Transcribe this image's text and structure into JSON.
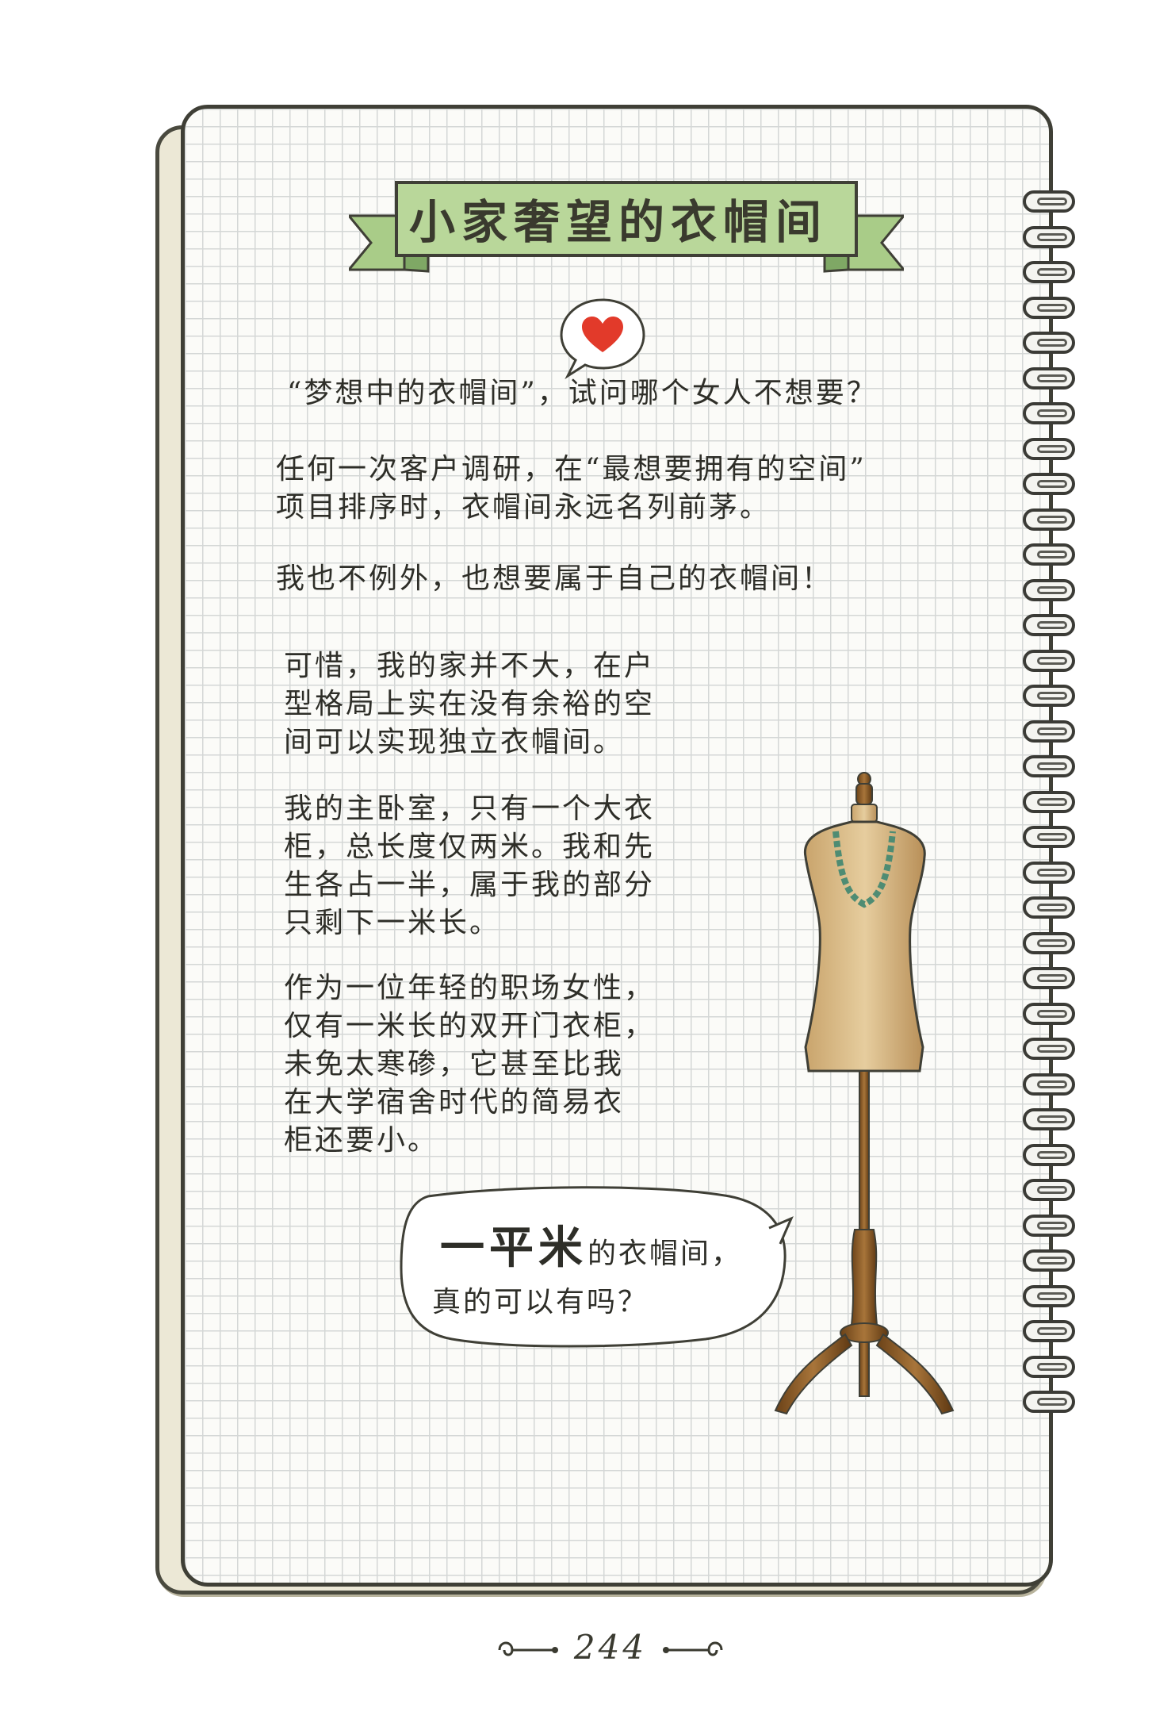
{
  "banner": {
    "title": "小家奢望的衣帽间",
    "color": "#b9d79a"
  },
  "heart_color": "#e23a2a",
  "paragraphs": {
    "p1": [
      "“梦想中的衣帽间”，试问哪个女人不想要？"
    ],
    "p2": [
      "任何一次客户调研，在“最想要拥有的空间”",
      "项目排序时，衣帽间永远名列前茅。"
    ],
    "p3": [
      "我也不例外，也想要属于自己的衣帽间！"
    ],
    "p4": [
      "可惜，我的家并不大，在户",
      "型格局上实在没有余裕的空",
      "间可以实现独立衣帽间。"
    ],
    "p5": [
      "我的主卧室，只有一个大衣",
      "柜，总长度仅两米。我和先",
      "生各占一半，属于我的部分",
      "只剩下一米长。"
    ],
    "p6": [
      "作为一位年轻的职场女性，",
      "仅有一米长的双开门衣柜，",
      "未免太寒碜，它甚至比我",
      "在大学宿舍时代的简易衣",
      "柜还要小。"
    ]
  },
  "speech": {
    "big": "一平米",
    "small": "的衣帽间，",
    "line2": "真的可以有吗？"
  },
  "page_number": "244"
}
